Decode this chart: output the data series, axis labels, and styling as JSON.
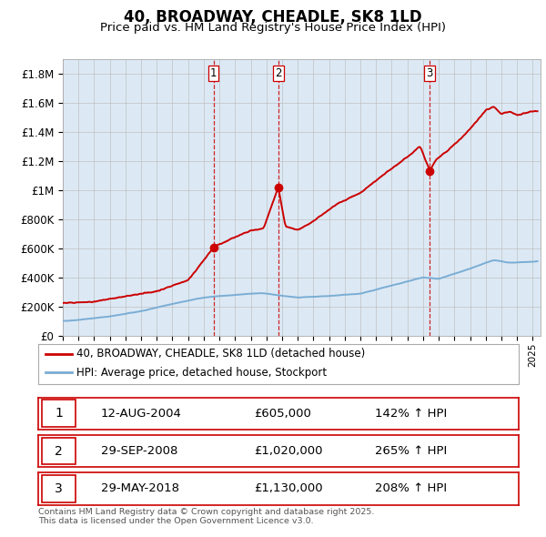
{
  "title": "40, BROADWAY, CHEADLE, SK8 1LD",
  "subtitle": "Price paid vs. HM Land Registry's House Price Index (HPI)",
  "footer": "Contains HM Land Registry data © Crown copyright and database right 2025.\nThis data is licensed under the Open Government Licence v3.0.",
  "legend_line1": "40, BROADWAY, CHEADLE, SK8 1LD (detached house)",
  "legend_line2": "HPI: Average price, detached house, Stockport",
  "sale_color": "#cc0000",
  "hpi_color": "#7aadd4",
  "dashed_line_color": "#cc0000",
  "background_color": "#dce9f5",
  "plot_bg": "#ffffff",
  "ylim": [
    0,
    1900000
  ],
  "yticks": [
    0,
    200000,
    400000,
    600000,
    800000,
    1000000,
    1200000,
    1400000,
    1600000,
    1800000
  ],
  "ytick_labels": [
    "£0",
    "£200K",
    "£400K",
    "£600K",
    "£800K",
    "£1M",
    "£1.2M",
    "£1.4M",
    "£1.6M",
    "£1.8M"
  ],
  "sale_dates": [
    2004.62,
    2008.75,
    2018.41
  ],
  "sale_prices": [
    605000,
    1020000,
    1130000
  ],
  "sale_labels": [
    "1",
    "2",
    "3"
  ],
  "sale_date_strs": [
    "12-AUG-2004",
    "29-SEP-2008",
    "29-MAY-2018"
  ],
  "sale_price_strs": [
    "£605,000",
    "£1,020,000",
    "£1,130,000"
  ],
  "sale_hpi_strs": [
    "142% ↑ HPI",
    "265% ↑ HPI",
    "208% ↑ HPI"
  ],
  "xmin": 1995,
  "xmax": 2025.5
}
